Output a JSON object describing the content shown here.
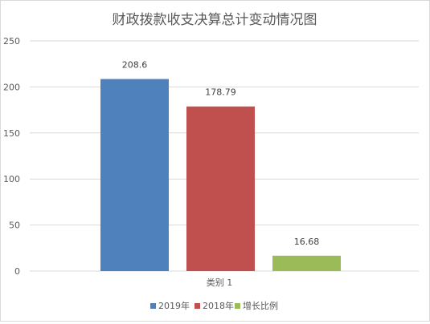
{
  "chart_data": {
    "type": "bar",
    "title": "财政拨款收支决算总计变动情况图",
    "categories": [
      "类别 1"
    ],
    "series": [
      {
        "name": "2019年",
        "values": [
          208.6
        ],
        "color": "#4f81bd",
        "label": "208.6"
      },
      {
        "name": "2018年",
        "values": [
          178.79
        ],
        "color": "#c0504d",
        "label": "178.79"
      },
      {
        "name": "增长比例",
        "values": [
          16.68
        ],
        "color": "#9bbb59",
        "label": "16.68"
      }
    ],
    "y_ticks": [
      "0",
      "50",
      "100",
      "150",
      "200",
      "250"
    ],
    "ylim": [
      0,
      250
    ],
    "grid": true,
    "legend_position": "bottom"
  }
}
